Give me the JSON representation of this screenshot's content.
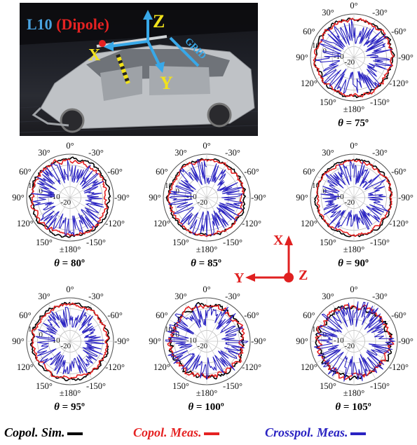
{
  "photo": {
    "title_prefix": "L10",
    "title_suffix": "(Dipole)",
    "axis_z": "Z",
    "axis_x": "X",
    "axis_y": "Y",
    "label_grid": "GRID",
    "colors": {
      "prefix": "#4aa3e0",
      "suffix": "#e52222",
      "axes": "#f1e21b",
      "arrows": "#38a8e8"
    }
  },
  "coord_icon": {
    "x_label": "X",
    "y_label": "Y",
    "z_label": "Z",
    "color": "#e02020"
  },
  "legend": {
    "items": [
      {
        "label": "Copol. Sim.",
        "color": "#000000"
      },
      {
        "label": "Copol. Meas.",
        "color": "#e52222"
      },
      {
        "label": "Crosspol. Meas.",
        "color": "#2a23c2"
      }
    ]
  },
  "chart_data": [
    {
      "type": "polar",
      "caption_theta": "θ",
      "caption_value": "= 75º",
      "angle_labels": [
        "0°",
        "-30°",
        "-60°",
        "-90°",
        "-120°",
        "-150°",
        "±180°",
        "150°",
        "120°",
        "90°",
        "60°",
        "30°"
      ],
      "radial_labels": [
        "10",
        "0",
        "-10",
        "-20"
      ],
      "rlim": [
        -30,
        10
      ],
      "series": [
        {
          "color": "#000000",
          "mean_db": 5.5,
          "spread_db": 3.5,
          "seed": 11
        },
        {
          "color": "#e52222",
          "mean_db": 5.0,
          "spread_db": 4.0,
          "seed": 23
        },
        {
          "color": "#2a23c2",
          "mean_db": -6.0,
          "spread_db": 12.0,
          "seed": 37
        }
      ]
    },
    {
      "type": "polar",
      "caption_theta": "θ",
      "caption_value": "= 80º",
      "angle_labels": [
        "0°",
        "-30°",
        "-60°",
        "-90°",
        "-120°",
        "-150°",
        "±180°",
        "150°",
        "120°",
        "90°",
        "60°",
        "30°"
      ],
      "radial_labels": [
        "10",
        "0",
        "-10",
        "-20"
      ],
      "rlim": [
        -30,
        10
      ],
      "series": [
        {
          "color": "#000000",
          "mean_db": 6.0,
          "spread_db": 3.0,
          "seed": 41
        },
        {
          "color": "#e52222",
          "mean_db": 4.5,
          "spread_db": 4.5,
          "seed": 53
        },
        {
          "color": "#2a23c2",
          "mean_db": -5.0,
          "spread_db": 11.0,
          "seed": 67
        }
      ]
    },
    {
      "type": "polar",
      "caption_theta": "θ",
      "caption_value": "= 85º",
      "angle_labels": [
        "0°",
        "-30°",
        "-60°",
        "-90°",
        "-120°",
        "-150°",
        "±180°",
        "150°",
        "120°",
        "90°",
        "60°",
        "30°"
      ],
      "radial_labels": [
        "10",
        "0",
        "-10",
        "-20"
      ],
      "rlim": [
        -30,
        10
      ],
      "series": [
        {
          "color": "#000000",
          "mean_db": 5.0,
          "spread_db": 3.0,
          "seed": 71
        },
        {
          "color": "#e52222",
          "mean_db": 4.0,
          "spread_db": 3.5,
          "seed": 83
        },
        {
          "color": "#2a23c2",
          "mean_db": -6.0,
          "spread_db": 12.0,
          "seed": 97
        }
      ]
    },
    {
      "type": "polar",
      "caption_theta": "θ",
      "caption_value": "= 90º",
      "angle_labels": [
        "0°",
        "-30°",
        "-60°",
        "-90°",
        "-120°",
        "-150°",
        "±180°",
        "150°",
        "120°",
        "90°",
        "60°",
        "30°"
      ],
      "radial_labels": [
        "10",
        "0",
        "-10",
        "-20"
      ],
      "rlim": [
        -30,
        10
      ],
      "series": [
        {
          "color": "#000000",
          "mean_db": 5.0,
          "spread_db": 2.5,
          "seed": 101
        },
        {
          "color": "#e52222",
          "mean_db": 4.0,
          "spread_db": 3.0,
          "seed": 113
        },
        {
          "color": "#2a23c2",
          "mean_db": -7.0,
          "spread_db": 11.0,
          "seed": 127
        }
      ]
    },
    {
      "type": "polar",
      "caption_theta": "θ",
      "caption_value": "= 95º",
      "angle_labels": [
        "0°",
        "-30°",
        "-60°",
        "-90°",
        "-120°",
        "-150°",
        "±180°",
        "150°",
        "120°",
        "90°",
        "60°",
        "30°"
      ],
      "radial_labels": [
        "10",
        "0",
        "-10",
        "-20"
      ],
      "rlim": [
        -30,
        10
      ],
      "series": [
        {
          "color": "#000000",
          "mean_db": 5.0,
          "spread_db": 3.0,
          "seed": 131
        },
        {
          "color": "#e52222",
          "mean_db": 4.0,
          "spread_db": 3.5,
          "seed": 149
        },
        {
          "color": "#2a23c2",
          "mean_db": -7.0,
          "spread_db": 10.0,
          "seed": 157
        }
      ]
    },
    {
      "type": "polar",
      "caption_theta": "θ",
      "caption_value": "= 100º",
      "angle_labels": [
        "0°",
        "-30°",
        "-60°",
        "-90°",
        "-120°",
        "-150°",
        "±180°",
        "150°",
        "120°",
        "90°",
        "60°",
        "30°"
      ],
      "radial_labels": [
        "10",
        "0",
        "-10",
        "-20"
      ],
      "rlim": [
        -30,
        10
      ],
      "series": [
        {
          "color": "#000000",
          "mean_db": 3.5,
          "spread_db": 4.5,
          "seed": 163
        },
        {
          "color": "#e52222",
          "mean_db": 3.0,
          "spread_db": 5.5,
          "seed": 179
        },
        {
          "color": "#2a23c2",
          "mean_db": -4.0,
          "spread_db": 12.0,
          "seed": 191
        }
      ]
    },
    {
      "type": "polar",
      "caption_theta": "θ",
      "caption_value": "= 105º",
      "angle_labels": [
        "0°",
        "-30°",
        "-60°",
        "-90°",
        "-120°",
        "-150°",
        "±180°",
        "150°",
        "120°",
        "90°",
        "60°",
        "30°"
      ],
      "radial_labels": [
        "10",
        "0",
        "-10",
        "-20"
      ],
      "rlim": [
        -30,
        10
      ],
      "series": [
        {
          "color": "#000000",
          "mean_db": 3.0,
          "spread_db": 5.0,
          "seed": 199
        },
        {
          "color": "#e52222",
          "mean_db": 2.5,
          "spread_db": 6.0,
          "seed": 211
        },
        {
          "color": "#2a23c2",
          "mean_db": -4.0,
          "spread_db": 12.5,
          "seed": 223
        }
      ]
    }
  ]
}
